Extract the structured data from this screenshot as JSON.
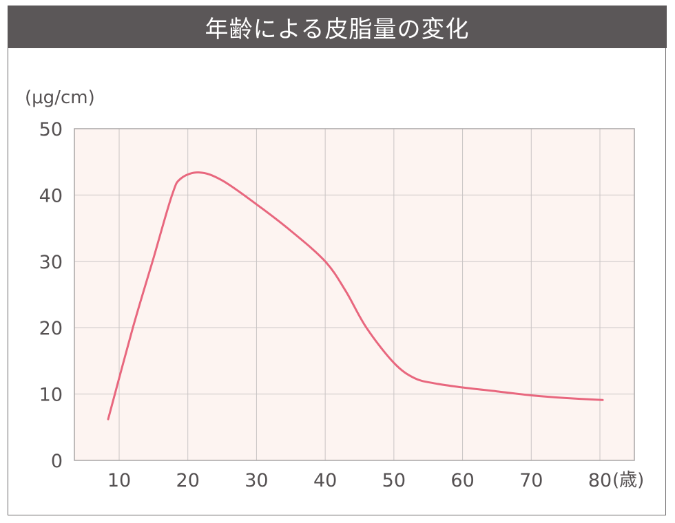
{
  "title": "年齢による皮脂量の変化",
  "colors": {
    "header_bg": "#5b5758",
    "header_text": "#ffffff",
    "plot_bg": "#fdf4f1",
    "grid": "#c9c4c4",
    "line": "#e8677e",
    "tick_text": "#555152"
  },
  "chart_data": {
    "type": "line",
    "title": "年齢による皮脂量の変化",
    "xlabel": "(歳)",
    "ylabel": "(μg/cm)",
    "xlim": [
      3.5,
      85
    ],
    "ylim": [
      0,
      50
    ],
    "x_ticks": [
      10,
      20,
      30,
      40,
      50,
      60,
      70,
      80
    ],
    "y_ticks": [
      0,
      10,
      20,
      30,
      40,
      50
    ],
    "grid": true,
    "legend": null,
    "series": [
      {
        "name": "皮脂量",
        "x": [
          8.4,
          12,
          15,
          17.7,
          19,
          21.7,
          25,
          30,
          35,
          40,
          43,
          46,
          50,
          53,
          56,
          60,
          65,
          70,
          75,
          80.4
        ],
        "y": [
          6.2,
          20,
          30.5,
          40,
          42.5,
          43.4,
          42.2,
          38.6,
          34.6,
          30,
          25.5,
          20,
          14.7,
          12.4,
          11.6,
          11,
          10.4,
          9.8,
          9.4,
          9.1
        ]
      }
    ]
  },
  "axis_labels": {
    "y_unit": "(μg/cm)",
    "x_unit": "(歳)",
    "y": [
      "0",
      "10",
      "20",
      "30",
      "40",
      "50"
    ],
    "x": [
      "10",
      "20",
      "30",
      "40",
      "50",
      "60",
      "70",
      "80"
    ]
  }
}
